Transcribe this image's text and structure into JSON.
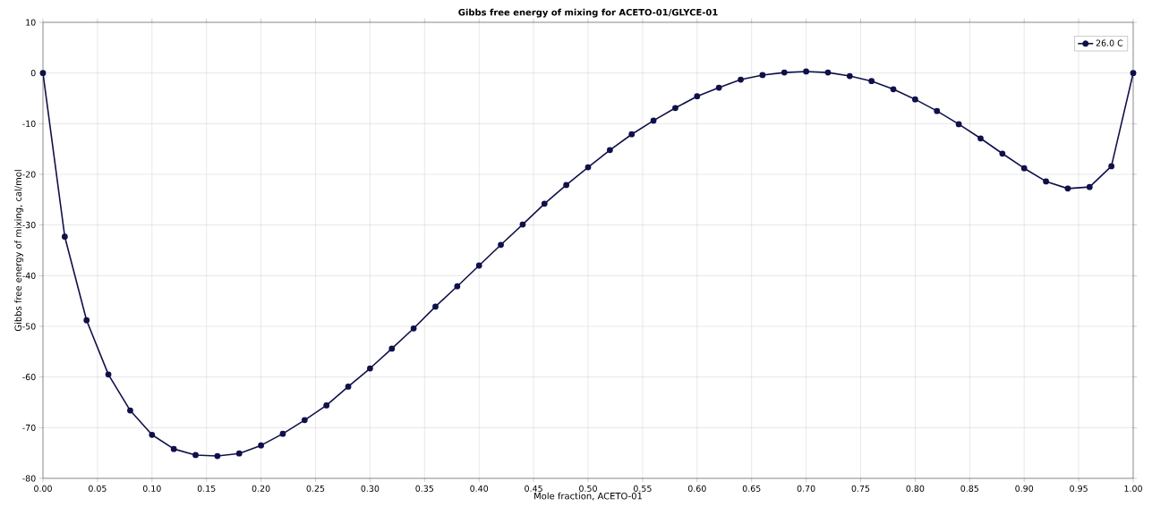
{
  "chart_data": {
    "type": "line",
    "title": "Gibbs free energy of mixing for ACETO-01/GLYCE-01",
    "xlabel": "Mole fraction, ACETO-01",
    "ylabel": "Gibbs free energy of mixing, cal/mol",
    "x": [
      0,
      0.02,
      0.04,
      0.06,
      0.08,
      0.1,
      0.12,
      0.14,
      0.16,
      0.18,
      0.2,
      0.22,
      0.24,
      0.26,
      0.28,
      0.3,
      0.32,
      0.34,
      0.36,
      0.38,
      0.4,
      0.42,
      0.44,
      0.46,
      0.48,
      0.5,
      0.52,
      0.54,
      0.56,
      0.58,
      0.6,
      0.62,
      0.64,
      0.66,
      0.68,
      0.7,
      0.72,
      0.74,
      0.76,
      0.78,
      0.8,
      0.82,
      0.84,
      0.86,
      0.88,
      0.9,
      0.92,
      0.94,
      0.96,
      0.98,
      1.0
    ],
    "series": [
      {
        "name": "26.0 C",
        "color": "#10104a",
        "values": [
          0,
          -32.3,
          -48.8,
          -59.5,
          -66.6,
          -71.4,
          -74.2,
          -75.4,
          -75.6,
          -75.1,
          -73.5,
          -71.2,
          -68.5,
          -65.6,
          -61.9,
          -58.3,
          -54.4,
          -50.4,
          -46.1,
          -42.1,
          -38.0,
          -33.9,
          -29.9,
          -25.8,
          -22.1,
          -18.6,
          -15.2,
          -12.1,
          -9.4,
          -6.9,
          -4.6,
          -2.9,
          -1.3,
          -0.4,
          0.1,
          0.3,
          0.1,
          -0.6,
          -1.6,
          -3.2,
          -5.2,
          -7.5,
          -10.1,
          -12.9,
          -15.9,
          -18.8,
          -21.4,
          -22.8,
          -22.5,
          -18.4,
          0
        ]
      }
    ],
    "xlim": [
      0,
      1
    ],
    "ylim": [
      -80,
      10
    ],
    "xticks": [
      {
        "value": 0,
        "label": "0.00"
      },
      {
        "value": 0.05,
        "label": "0.05"
      },
      {
        "value": 0.1,
        "label": "0.10"
      },
      {
        "value": 0.15,
        "label": "0.15"
      },
      {
        "value": 0.2,
        "label": "0.20"
      },
      {
        "value": 0.25,
        "label": "0.25"
      },
      {
        "value": 0.3,
        "label": "0.30"
      },
      {
        "value": 0.35,
        "label": "0.35"
      },
      {
        "value": 0.4,
        "label": "0.40"
      },
      {
        "value": 0.45,
        "label": "0.45"
      },
      {
        "value": 0.5,
        "label": "0.50"
      },
      {
        "value": 0.55,
        "label": "0.55"
      },
      {
        "value": 0.6,
        "label": "0.60"
      },
      {
        "value": 0.65,
        "label": "0.65"
      },
      {
        "value": 0.7,
        "label": "0.70"
      },
      {
        "value": 0.75,
        "label": "0.75"
      },
      {
        "value": 0.8,
        "label": "0.80"
      },
      {
        "value": 0.85,
        "label": "0.85"
      },
      {
        "value": 0.9,
        "label": "0.90"
      },
      {
        "value": 0.95,
        "label": "0.95"
      },
      {
        "value": 1,
        "label": "1.00"
      }
    ],
    "yticks": [
      -80,
      -70,
      -60,
      -50,
      -40,
      -30,
      -20,
      -10,
      0,
      10
    ],
    "grid": true,
    "legend": "top right",
    "marker": "circle",
    "line_style": "solid"
  }
}
